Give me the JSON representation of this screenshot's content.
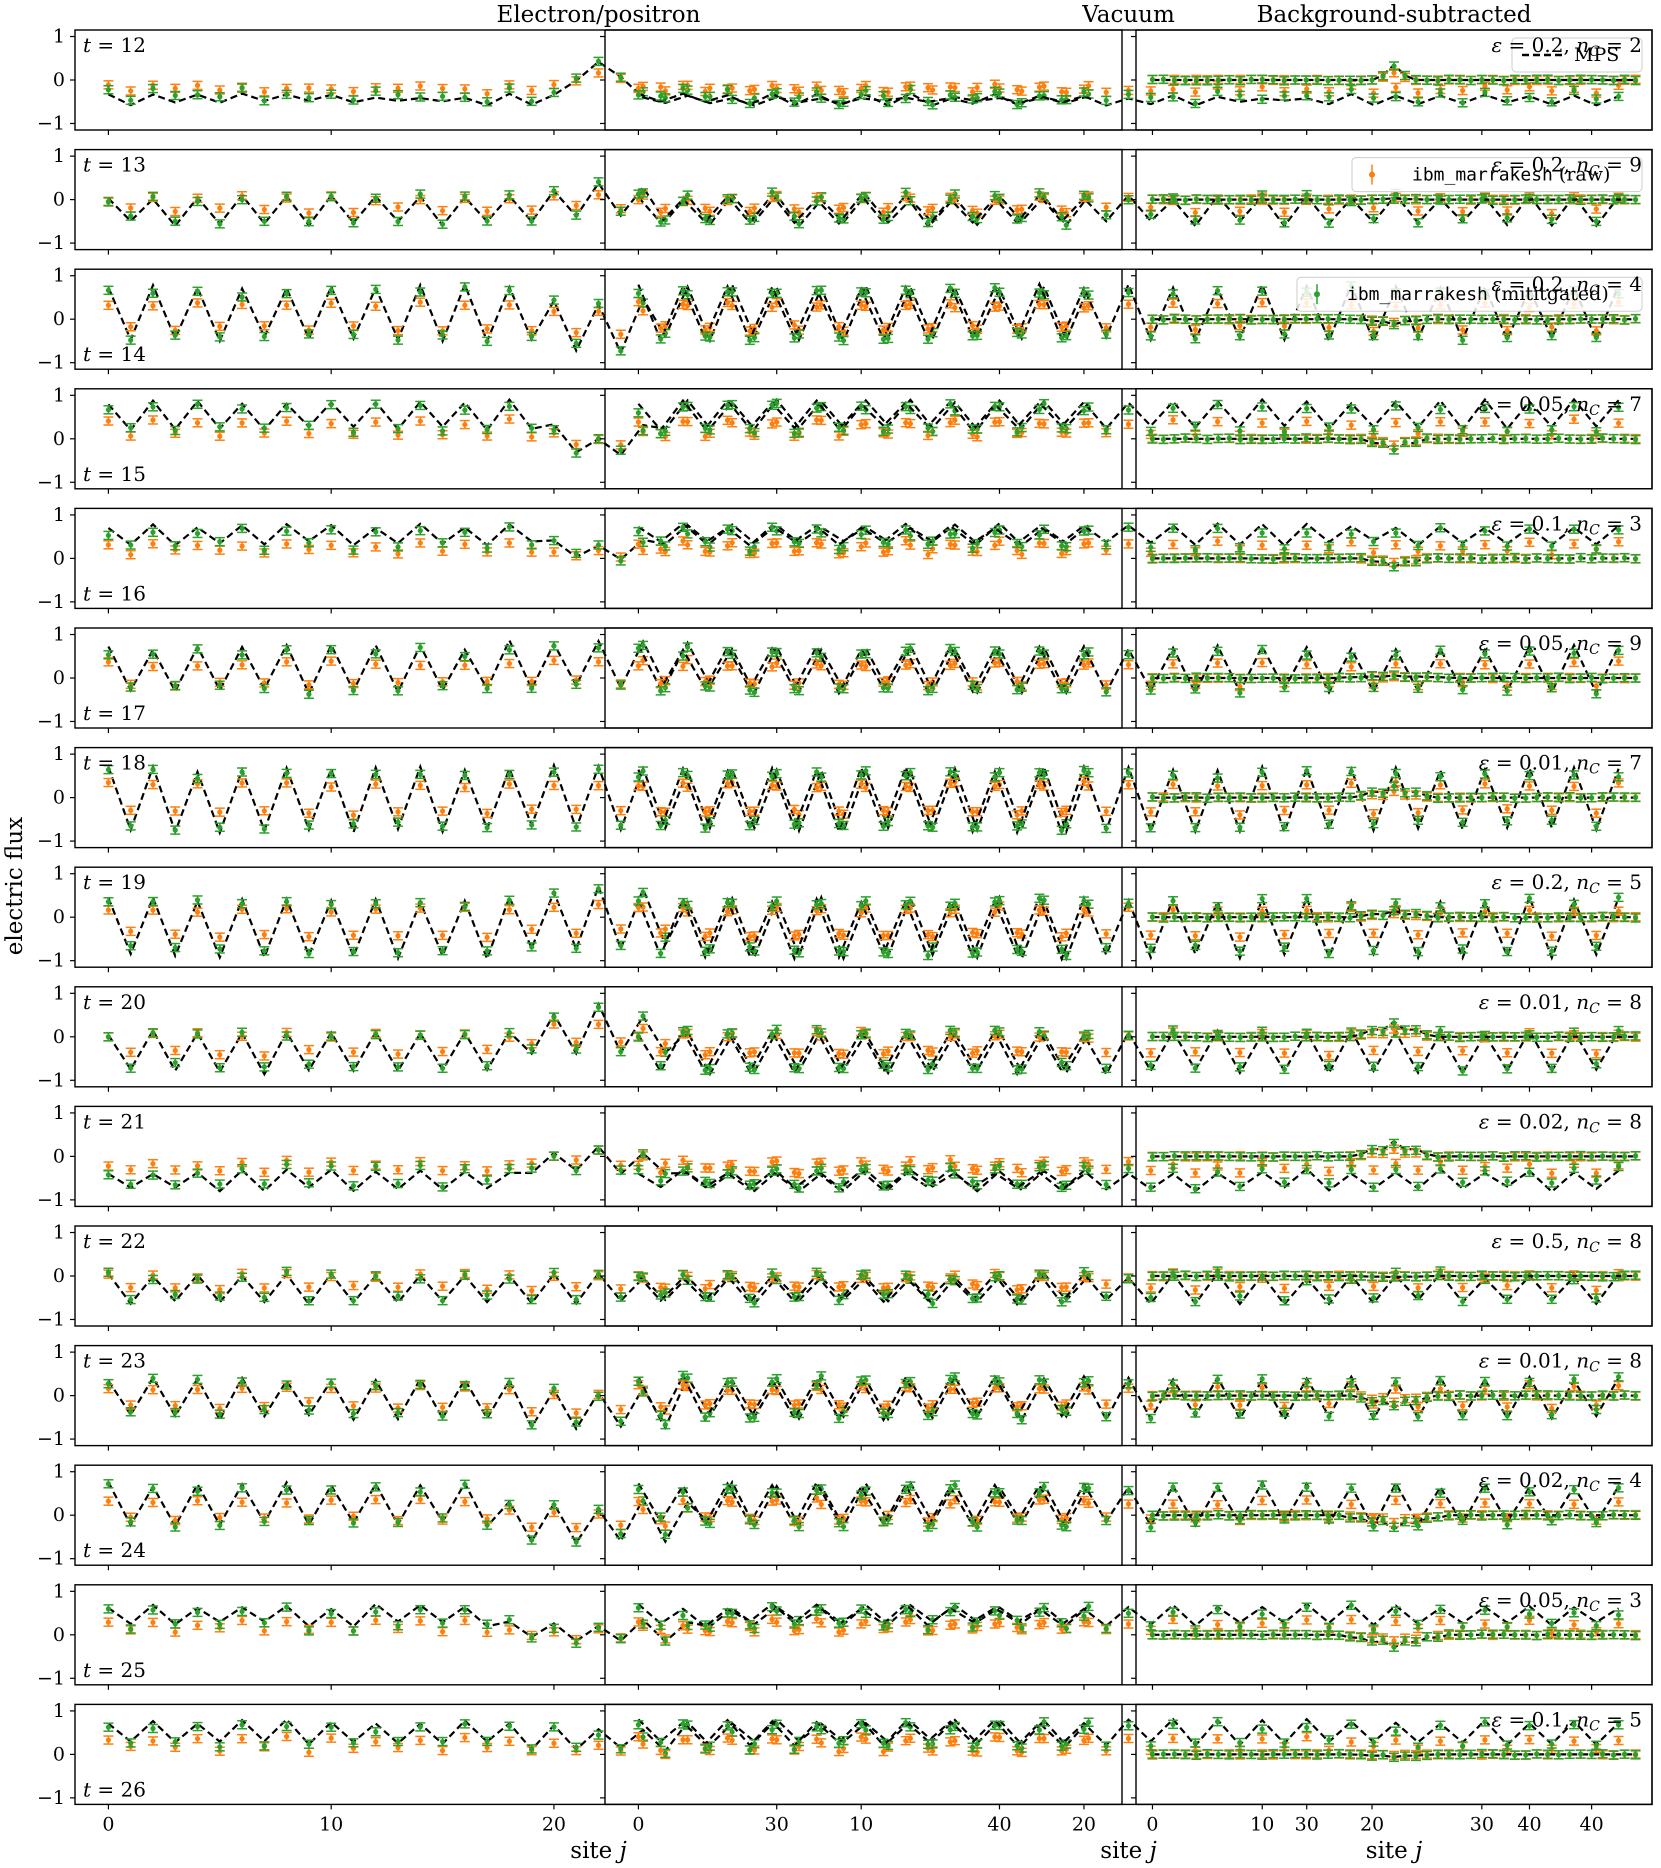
{
  "chart_data": {
    "type": "line",
    "column_titles": [
      "Electron/positron",
      "Vacuum",
      "Background-subtracted"
    ],
    "xlabel": "site j",
    "ylabel": "electric flux",
    "xlim": [
      -1.5,
      45.5
    ],
    "ylim": [
      -1.15,
      1.15
    ],
    "xticks": [
      0,
      10,
      20,
      30,
      40
    ],
    "yticks": [
      -1,
      0,
      1
    ],
    "grid": false,
    "n_sites": 45,
    "series": [
      {
        "name": "MPS",
        "style": "dashed line",
        "color": "#000000"
      },
      {
        "name": "ibm_marrakesh (raw)",
        "style": "errorbar points",
        "color": "#ff7f0e"
      },
      {
        "name": "ibm_marrakesh (mititgated)",
        "style": "errorbar points",
        "color": "#2ca02c"
      }
    ],
    "legend": {
      "mps": {
        "panel": "row 1, Vacuum",
        "placement": "top-right",
        "label": "MPS"
      },
      "raw": {
        "panel": "row 2, Vacuum",
        "placement": "top-right",
        "label_mono": "ibm_marrakesh",
        "label_suffix": "(raw)"
      },
      "mit": {
        "panel": "row 3, Vacuum",
        "placement": "top-right",
        "label_mono": "ibm_marrakesh",
        "label_suffix": "(mititgated)"
      }
    },
    "rows": [
      {
        "t": 12,
        "t_label": "t = 12",
        "t_pos": "top",
        "params": "ε = 0.2, n_C = 2",
        "eps": "0.2",
        "nc": "2",
        "b": -0.45,
        "a": 0.08,
        "bump": 0.8,
        "bsub": 0.35,
        "w": 1
      },
      {
        "t": 13,
        "t_label": "t = 13",
        "t_pos": "top",
        "params": "ε = 0.2, n_C = 9",
        "eps": "0.2",
        "nc": "9",
        "b": -0.25,
        "a": 0.3,
        "bump": 0.3,
        "bsub": 0.03,
        "w": 2
      },
      {
        "t": 14,
        "t_label": "t = 14",
        "t_pos": "bottom",
        "params": "ε = 0.2, n_C = 4",
        "eps": "0.2",
        "nc": "4",
        "b": 0.15,
        "a": 0.6,
        "bump": -0.45,
        "bsub": -0.12,
        "w": 2
      },
      {
        "t": 15,
        "t_label": "t = 15",
        "t_pos": "bottom",
        "params": "ε = 0.05, n_C = 7",
        "eps": "0.05",
        "nc": "7",
        "b": 0.55,
        "a": 0.3,
        "bump": -0.8,
        "bsub": -0.28,
        "w": 2
      },
      {
        "t": 16,
        "t_label": "t = 16",
        "t_pos": "bottom",
        "params": "ε = 0.1, n_C = 3",
        "eps": "0.1",
        "nc": "3",
        "b": 0.55,
        "a": 0.2,
        "bump": -0.45,
        "bsub": -0.2,
        "w": 2
      },
      {
        "t": 17,
        "t_label": "t = 17",
        "t_pos": "bottom",
        "params": "ε = 0.05, n_C = 9",
        "eps": "0.05",
        "nc": "9",
        "b": 0.2,
        "a": 0.5,
        "bump": 0.15,
        "bsub": 0.06,
        "w": 5
      },
      {
        "t": 18,
        "t_label": "t = 18",
        "t_pos": "top",
        "params": "ε = 0.01, n_C = 7",
        "eps": "0.01",
        "nc": "7",
        "b": -0.05,
        "a": 0.7,
        "bump": 0.1,
        "bsub": 0.28,
        "w": 3
      },
      {
        "t": 19,
        "t_label": "t = 19",
        "t_pos": "top",
        "params": "ε = 0.2, n_C = 5",
        "eps": "0.2",
        "nc": "5",
        "b": -0.25,
        "a": 0.65,
        "bump": 0.3,
        "bsub": 0.15,
        "w": 3
      },
      {
        "t": 20,
        "t_label": "t = 20",
        "t_pos": "top",
        "params": "ε = 0.01, n_C = 8",
        "eps": "0.01",
        "nc": "8",
        "b": -0.35,
        "a": 0.45,
        "bump": 0.6,
        "bsub": 0.35,
        "w": 3
      },
      {
        "t": 21,
        "t_label": "t = 21",
        "t_pos": "top",
        "params": "ε = 0.02, n_C = 8",
        "eps": "0.02",
        "nc": "8",
        "b": -0.55,
        "a": 0.2,
        "bump": 0.55,
        "bsub": 0.35,
        "w": 3
      },
      {
        "t": 22,
        "t_label": "t = 22",
        "t_pos": "top",
        "params": "ε = 0.5, n_C = 8",
        "eps": "0.5",
        "nc": "8",
        "b": -0.3,
        "a": 0.3,
        "bump": 0.0,
        "bsub": -0.03,
        "w": 3
      },
      {
        "t": 23,
        "t_label": "t = 23",
        "t_pos": "top",
        "params": "ε = 0.01, n_C = 8",
        "eps": "0.01",
        "nc": "8",
        "b": -0.05,
        "a": 0.45,
        "bump": -0.35,
        "bsub": -0.28,
        "w": 3
      },
      {
        "t": 24,
        "t_label": "t = 24",
        "t_pos": "bottom",
        "params": "ε = 0.02, n_C = 4",
        "eps": "0.02",
        "nc": "4",
        "b": 0.25,
        "a": 0.45,
        "bump": -0.55,
        "bsub": -0.32,
        "w": 4
      },
      {
        "t": 25,
        "t_label": "t = 25",
        "t_pos": "bottom",
        "params": "ε = 0.05, n_C = 3",
        "eps": "0.05",
        "nc": "3",
        "b": 0.45,
        "a": 0.2,
        "bump": -0.5,
        "bsub": -0.3,
        "w": 4
      },
      {
        "t": 26,
        "t_label": "t = 26",
        "t_pos": "bottom",
        "params": "ε = 0.1, n_C = 5",
        "eps": "0.1",
        "nc": "5",
        "b": 0.5,
        "a": 0.25,
        "bump": -0.2,
        "bsub": -0.06,
        "w": 3
      }
    ]
  }
}
